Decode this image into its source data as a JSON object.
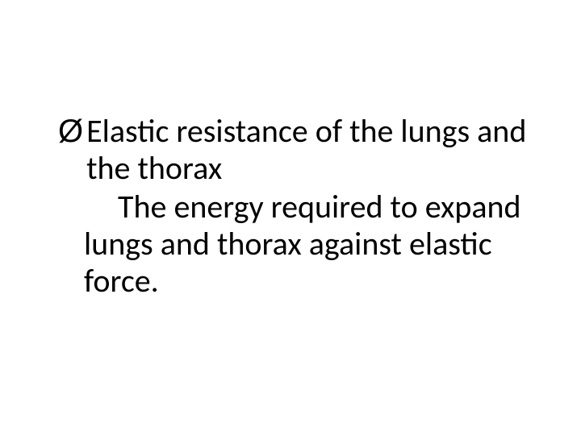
{
  "slide": {
    "bullet_glyph": "Ø",
    "bullet_line": "Elastic resistance of the lungs and the thorax",
    "sub_line": "The energy required to expand lungs and thorax against elastic force.",
    "text_color": "#000000",
    "background_color": "#ffffff",
    "fontsize": 40,
    "line_height": 1.15
  }
}
